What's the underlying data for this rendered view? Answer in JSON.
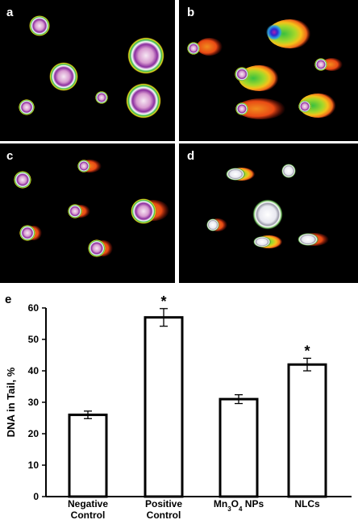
{
  "panels": [
    {
      "letter": "a"
    },
    {
      "letter": "b"
    },
    {
      "letter": "c"
    },
    {
      "letter": "d"
    }
  ],
  "chart_data": {
    "type": "bar",
    "panel_letter": "e",
    "categories": [
      [
        "Negative",
        "Control"
      ],
      [
        "Positive",
        "Control"
      ],
      [
        "Mn3O4 NPs"
      ],
      [
        "NLCs"
      ]
    ],
    "values": [
      26,
      57,
      31,
      42
    ],
    "errors": [
      1.2,
      2.8,
      1.4,
      2.0
    ],
    "significance": [
      "",
      "*",
      "",
      "*"
    ],
    "ylabel": "DNA in Tail, %",
    "ylim": [
      0,
      60
    ],
    "yticks": [
      "0",
      "10",
      "20",
      "30",
      "40",
      "50",
      "60"
    ],
    "bar_fill": "#ffffff",
    "bar_stroke": "#000000",
    "grid": false
  }
}
